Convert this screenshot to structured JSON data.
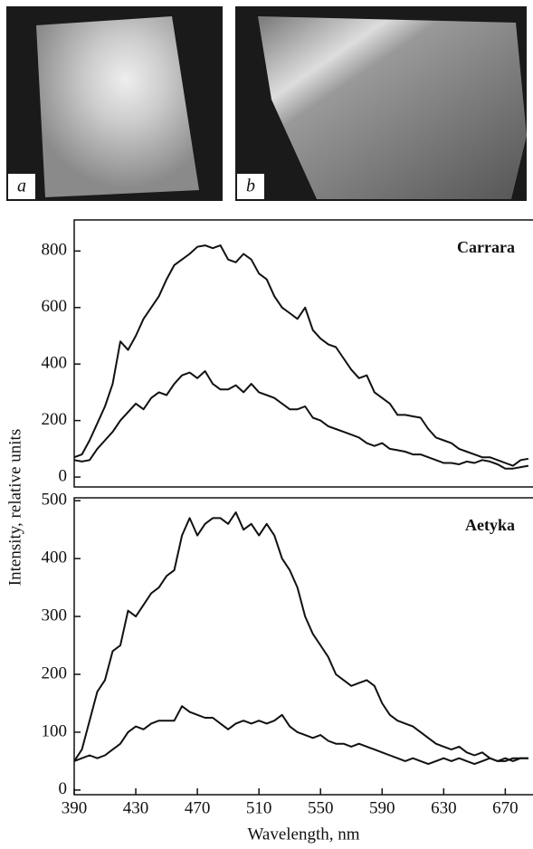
{
  "photos": {
    "labels": [
      "a",
      "b"
    ]
  },
  "chart_data": [
    {
      "type": "line",
      "annotation": "Carrara",
      "ylabel": "Intensity, relative units",
      "x": [
        390,
        395,
        400,
        405,
        410,
        415,
        420,
        425,
        430,
        435,
        440,
        445,
        450,
        455,
        460,
        465,
        470,
        475,
        480,
        485,
        490,
        495,
        500,
        505,
        510,
        515,
        520,
        525,
        530,
        535,
        540,
        545,
        550,
        555,
        560,
        565,
        570,
        575,
        580,
        585,
        590,
        595,
        600,
        605,
        610,
        615,
        620,
        625,
        630,
        635,
        640,
        645,
        650,
        655,
        660,
        665,
        670,
        675,
        680,
        685
      ],
      "series": [
        {
          "color": "#111111",
          "values": [
            70,
            80,
            130,
            190,
            250,
            330,
            480,
            450,
            500,
            560,
            600,
            640,
            700,
            750,
            770,
            790,
            815,
            820,
            810,
            820,
            770,
            760,
            790,
            770,
            720,
            700,
            640,
            600,
            580,
            560,
            600,
            520,
            490,
            470,
            460,
            420,
            380,
            350,
            360,
            300,
            280,
            260,
            220,
            220,
            215,
            210,
            170,
            140,
            130,
            120,
            100,
            90,
            80,
            70,
            70,
            60,
            50,
            40,
            60,
            65
          ]
        },
        {
          "color": "#111111",
          "values": [
            60,
            55,
            60,
            100,
            130,
            160,
            200,
            230,
            260,
            240,
            280,
            300,
            290,
            330,
            360,
            370,
            350,
            375,
            330,
            310,
            310,
            325,
            300,
            330,
            300,
            290,
            280,
            260,
            240,
            240,
            250,
            210,
            200,
            180,
            170,
            160,
            150,
            140,
            120,
            110,
            120,
            100,
            95,
            90,
            80,
            80,
            70,
            60,
            50,
            50,
            45,
            55,
            50,
            60,
            55,
            45,
            30,
            30,
            35,
            40
          ]
        }
      ],
      "xlim": [
        390,
        688
      ],
      "ylim": [
        -35,
        910
      ],
      "yticks": [
        0,
        200,
        400,
        600,
        800
      ]
    },
    {
      "type": "line",
      "annotation": "Aetyka",
      "xlabel": "Wavelength, nm",
      "x": [
        390,
        395,
        400,
        405,
        410,
        415,
        420,
        425,
        430,
        435,
        440,
        445,
        450,
        455,
        460,
        465,
        470,
        475,
        480,
        485,
        490,
        495,
        500,
        505,
        510,
        515,
        520,
        525,
        530,
        535,
        540,
        545,
        550,
        555,
        560,
        565,
        570,
        575,
        580,
        585,
        590,
        595,
        600,
        605,
        610,
        615,
        620,
        625,
        630,
        635,
        640,
        645,
        650,
        655,
        660,
        665,
        670,
        675,
        680,
        685
      ],
      "series": [
        {
          "color": "#111111",
          "values": [
            50,
            70,
            120,
            170,
            190,
            240,
            250,
            310,
            300,
            320,
            340,
            350,
            370,
            380,
            440,
            470,
            440,
            460,
            470,
            470,
            460,
            480,
            450,
            460,
            440,
            460,
            440,
            400,
            380,
            350,
            300,
            270,
            250,
            230,
            200,
            190,
            180,
            185,
            190,
            180,
            150,
            130,
            120,
            115,
            110,
            100,
            90,
            80,
            75,
            70,
            75,
            65,
            60,
            65,
            55,
            50,
            55,
            50,
            55,
            55
          ]
        },
        {
          "color": "#111111",
          "values": [
            50,
            55,
            60,
            55,
            60,
            70,
            80,
            100,
            110,
            105,
            115,
            120,
            120,
            120,
            145,
            135,
            130,
            125,
            125,
            115,
            105,
            115,
            120,
            115,
            120,
            115,
            120,
            130,
            110,
            100,
            95,
            90,
            95,
            85,
            80,
            80,
            75,
            80,
            75,
            70,
            65,
            60,
            55,
            50,
            55,
            50,
            45,
            50,
            55,
            50,
            55,
            50,
            45,
            50,
            55,
            50,
            50,
            55,
            55,
            55
          ]
        }
      ],
      "xlim": [
        390,
        688
      ],
      "ylim": [
        -8,
        505
      ],
      "yticks": [
        0,
        100,
        200,
        300,
        400,
        500
      ],
      "xticks": [
        390,
        430,
        470,
        510,
        550,
        590,
        630,
        670
      ]
    }
  ]
}
